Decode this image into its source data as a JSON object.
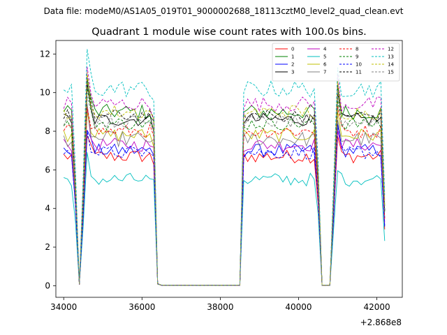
{
  "suptitle": "Data file: modeM0/AS1A05_019T01_9000002688_18113cztM0_level2_quad_clean.evt",
  "chart_data": {
    "type": "line",
    "title": "Quadrant 1 module wise count rates with 100.0s bins.",
    "xlabel": "",
    "ylabel": "",
    "x_offset_label": "+2.868e8",
    "xlim": [
      33800,
      42650
    ],
    "ylim": [
      -0.6,
      12.7
    ],
    "xticks": [
      34000,
      36000,
      38000,
      40000,
      42000
    ],
    "xtick_labels": [
      "34000",
      "36000",
      "38000",
      "40000",
      "42000"
    ],
    "yticks": [
      0,
      2,
      4,
      6,
      8,
      10,
      12
    ],
    "ytick_labels": [
      "0",
      "2",
      "4",
      "6",
      "8",
      "10",
      "12"
    ],
    "legend": {
      "position": "top-right",
      "ncol": 4
    },
    "segments": [
      {
        "start": 34000,
        "n": 24,
        "last_factor": 1.0
      },
      {
        "start": 36400,
        "n": 22,
        "last_factor": 0.02
      },
      {
        "start": 38600,
        "n": 21,
        "last_factor": 1.0
      },
      {
        "start": 40700,
        "n": 3,
        "last_factor": 0.02
      },
      {
        "start": 41000,
        "n": 13,
        "last_factor": 1.0
      }
    ],
    "series": [
      {
        "name": "0",
        "color": "#ff0000",
        "dash": "solid",
        "base": 6.7,
        "amp": 0.35
      },
      {
        "name": "1",
        "color": "#008000",
        "dash": "solid",
        "base": 9.0,
        "amp": 0.4
      },
      {
        "name": "2",
        "color": "#0000ff",
        "dash": "solid",
        "base": 7.0,
        "amp": 0.35
      },
      {
        "name": "3",
        "color": "#000000",
        "dash": "solid",
        "base": 8.6,
        "amp": 0.35
      },
      {
        "name": "4",
        "color": "#bf00bf",
        "dash": "solid",
        "base": 7.3,
        "amp": 0.35
      },
      {
        "name": "5",
        "color": "#00bfbf",
        "dash": "solid",
        "base": 5.5,
        "amp": 0.35
      },
      {
        "name": "6",
        "color": "#bfbf00",
        "dash": "solid",
        "base": 7.8,
        "amp": 0.35
      },
      {
        "name": "7",
        "color": "#808080",
        "dash": "solid",
        "base": 7.6,
        "amp": 0.4
      },
      {
        "name": "8",
        "color": "#ff0000",
        "dash": "dashed",
        "base": 8.0,
        "amp": 0.35
      },
      {
        "name": "9",
        "color": "#008000",
        "dash": "dashed",
        "base": 8.4,
        "amp": 0.35
      },
      {
        "name": "10",
        "color": "#0000ff",
        "dash": "dashed",
        "base": 6.9,
        "amp": 0.35
      },
      {
        "name": "11",
        "color": "#000000",
        "dash": "dashed",
        "base": 8.8,
        "amp": 0.35
      },
      {
        "name": "12",
        "color": "#bf00bf",
        "dash": "dashed",
        "base": 9.4,
        "amp": 0.4
      },
      {
        "name": "13",
        "color": "#00bfbf",
        "dash": "dashed",
        "base": 10.2,
        "amp": 0.45
      },
      {
        "name": "14",
        "color": "#bfbf00",
        "dash": "dashed",
        "base": 9.0,
        "amp": 0.4
      },
      {
        "name": "15",
        "color": "#808080",
        "dash": "dashed",
        "base": 8.5,
        "amp": 0.35
      }
    ]
  }
}
